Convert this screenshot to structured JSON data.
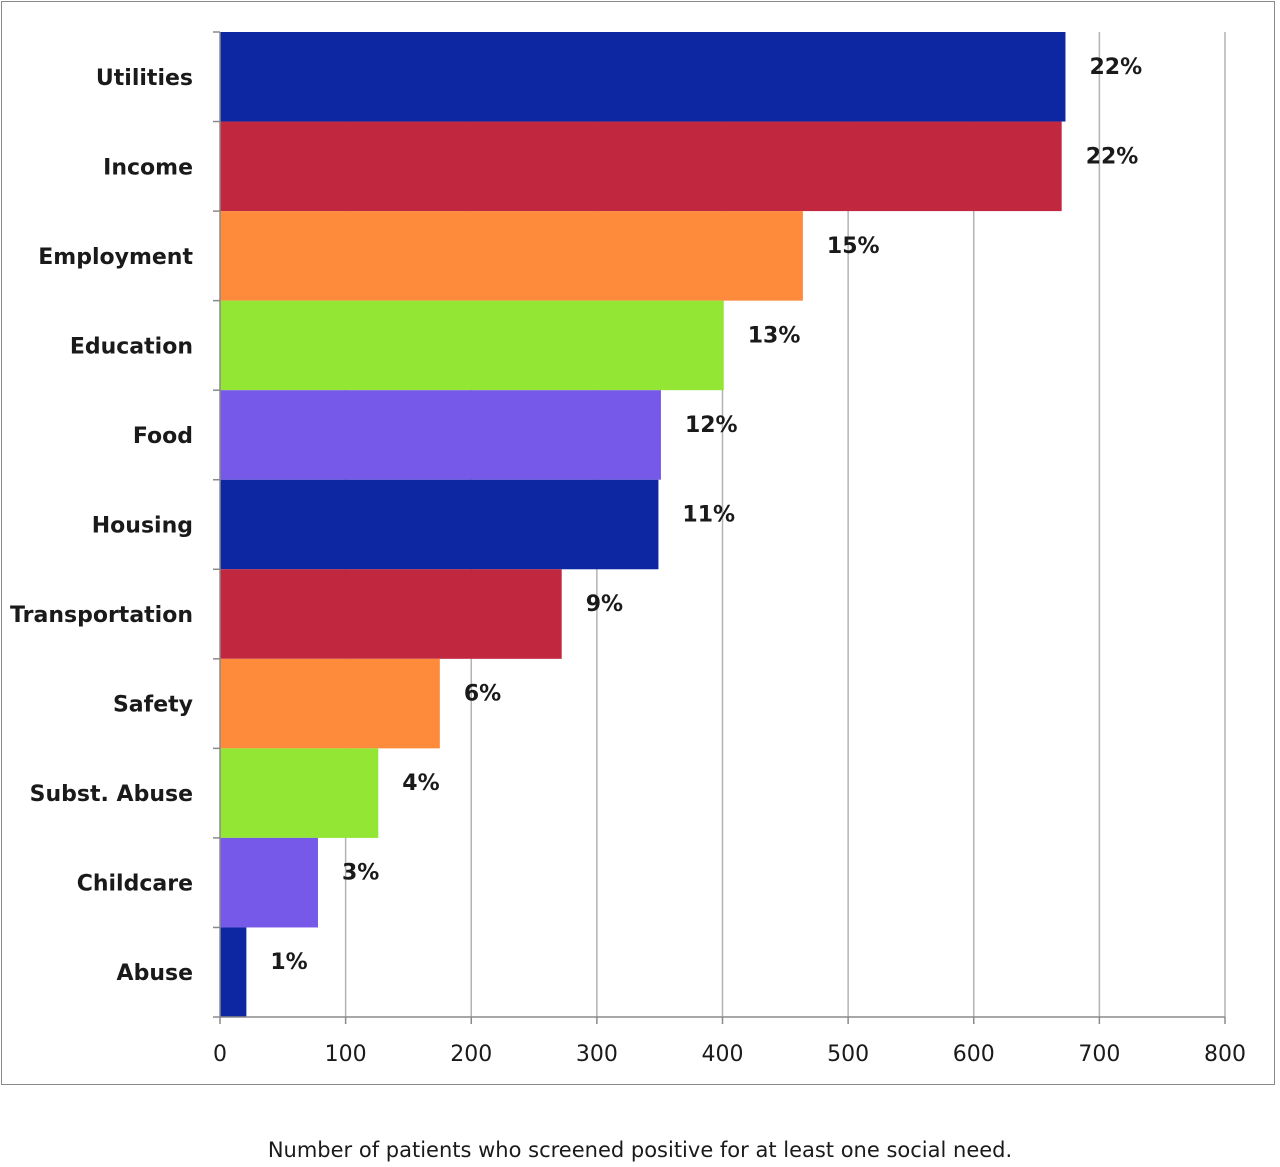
{
  "chart_data": {
    "type": "bar",
    "orientation": "horizontal",
    "caption": "Number of patients who screened positive for at least one social need.",
    "categories": [
      "Utilities",
      "Income",
      "Employment",
      "Education",
      "Food",
      "Housing",
      "Transportation",
      "Safety",
      "Subst. Abuse",
      "Childcare",
      "Abuse"
    ],
    "values": [
      673,
      670,
      464,
      401,
      351,
      349,
      272,
      175,
      126,
      78,
      21
    ],
    "data_labels": [
      "22%",
      "22%",
      "15%",
      "13%",
      "12%",
      "11%",
      "9%",
      "6%",
      "4%",
      "3%",
      "1%"
    ],
    "colors": [
      "#0d27a3",
      "#c1283f",
      "#fe8a3b",
      "#93e633",
      "#7659e8",
      "#0d27a3",
      "#c1283f",
      "#fe8a3b",
      "#93e633",
      "#7659e8",
      "#0d27a3"
    ],
    "xlim": [
      0,
      800
    ],
    "xticks": [
      0,
      100,
      200,
      300,
      400,
      500,
      600,
      700,
      800
    ],
    "grid": true
  }
}
